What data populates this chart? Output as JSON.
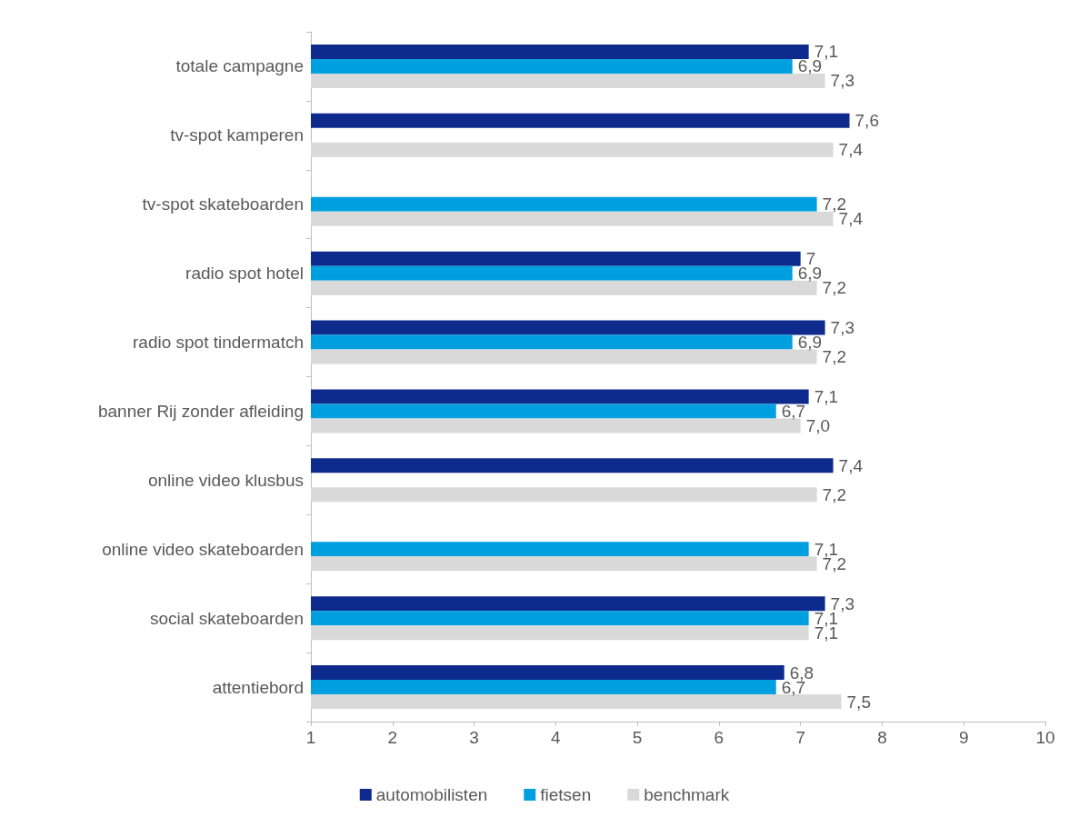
{
  "chart_data": {
    "type": "bar",
    "orientation": "horizontal",
    "categories": [
      "totale campagne",
      "tv-spot kamperen",
      "tv-spot skateboarden",
      "radio spot hotel",
      "radio spot tindermatch",
      "banner Rij zonder afleiding",
      "online video klusbus",
      "online video skateboarden",
      "social skateboarden",
      "attentiebord"
    ],
    "series": [
      {
        "name": "automobilisten",
        "color": "#0d2a8c",
        "values": [
          7.1,
          7.6,
          null,
          7,
          7.3,
          7.1,
          7.4,
          null,
          7.3,
          6.8
        ],
        "value_labels": [
          "7,1",
          "7,6",
          null,
          "7",
          "7,3",
          "7,1",
          "7,4",
          null,
          "7,3",
          "6,8"
        ]
      },
      {
        "name": "fietsen",
        "color": "#009fdf",
        "values": [
          6.9,
          null,
          7.2,
          6.9,
          6.9,
          6.7,
          null,
          7.1,
          7.1,
          6.7
        ],
        "value_labels": [
          "6,9",
          null,
          "7,2",
          "6,9",
          "6,9",
          "6,7",
          null,
          "7,1",
          "7,1",
          "6,7"
        ]
      },
      {
        "name": "benchmark",
        "color": "#d9d9d9",
        "values": [
          7.3,
          7.4,
          7.4,
          7.2,
          7.2,
          7.0,
          7.2,
          7.2,
          7.1,
          7.5
        ],
        "value_labels": [
          "7,3",
          "7,4",
          "7,4",
          "7,2",
          "7,2",
          "7,0",
          "7,2",
          "7,2",
          "7,1",
          "7,5"
        ]
      }
    ],
    "xlim": [
      1,
      10
    ],
    "xticks": [
      1,
      2,
      3,
      4,
      5,
      6,
      7,
      8,
      9,
      10
    ],
    "grid": false,
    "legend": "bottom"
  }
}
